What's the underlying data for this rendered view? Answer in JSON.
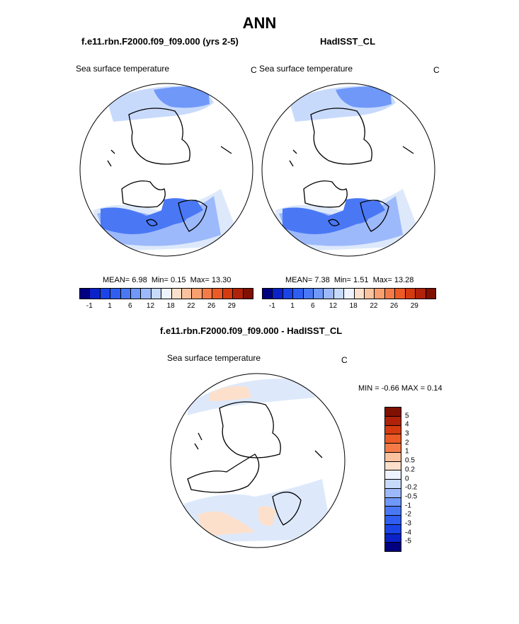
{
  "page_title": "ANN",
  "panel_left": {
    "case_title": "f.e11.rbn.F2000.f09_f09.000 (yrs 2-5)",
    "field_label": "Sea surface temperature",
    "units": "C",
    "stats": {
      "mean_label": "MEAN=",
      "mean": "6.98",
      "min_label": "Min=",
      "min": "0.15",
      "max_label": "Max=",
      "max": "13.30"
    }
  },
  "panel_right": {
    "case_title": "HadISST_CL",
    "field_label": "Sea surface temperature",
    "units": "C",
    "stats": {
      "mean_label": "MEAN=",
      "mean": "7.38",
      "min_label": "Min=",
      "min": "1.51",
      "max_label": "Max=",
      "max": "13.28"
    }
  },
  "panel_diff": {
    "case_title": "f.e11.rbn.F2000.f09_f09.000 - HadISST_CL",
    "field_label": "Sea surface temperature",
    "units": "C",
    "minmax_text": "MIN =  -0.66 MAX =   0.14"
  },
  "colorbar_abs": {
    "colors": [
      "#000080",
      "#0a22c8",
      "#1a44e6",
      "#2f5ef0",
      "#4a78f5",
      "#6f98f8",
      "#9cb9fb",
      "#c8dafc",
      "#eef3ff",
      "#fde0cc",
      "#fbc2a0",
      "#f8a070",
      "#f47b48",
      "#ec5a26",
      "#d53a10",
      "#b0220a",
      "#801000"
    ],
    "labels": [
      "-1",
      "1",
      "6",
      "12",
      "18",
      "22",
      "26",
      "29"
    ]
  },
  "colorbar_diff": {
    "colors": [
      "#801000",
      "#b0220a",
      "#d53a10",
      "#ec5a26",
      "#f47b48",
      "#fbc2a0",
      "#fde0cc",
      "#eef3ff",
      "#c8dafc",
      "#9cb9fb",
      "#6f98f8",
      "#4a78f5",
      "#2f5ef0",
      "#1a44e6",
      "#0a22c8",
      "#000080"
    ],
    "labels": [
      "5",
      "4",
      "3",
      "2",
      "1",
      "0.5",
      "0.2",
      "0",
      "-0.2",
      "-0.5",
      "-1",
      "-2",
      "-3",
      "-4",
      "-5"
    ]
  },
  "map_colors": {
    "deep": "#4a78f5",
    "mid": "#6f98f8",
    "light": "#9cb9fb",
    "pale": "#c8dafc",
    "paler": "#dde9fb",
    "warm": "#fde0cc"
  }
}
